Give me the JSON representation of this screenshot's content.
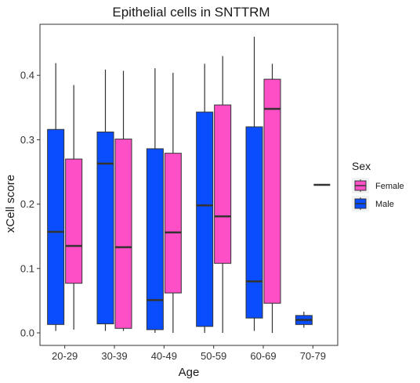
{
  "chart_data": {
    "type": "boxplot",
    "title": "Epithelial cells in SNTTRM",
    "xlabel": "Age",
    "ylabel": "xCell score",
    "categories": [
      "20-29",
      "30-39",
      "40-49",
      "50-59",
      "60-69",
      "70-79"
    ],
    "ylim": [
      -0.02,
      0.47
    ],
    "yticks": [
      "0.0",
      "0.1",
      "0.2",
      "0.3",
      "0.4"
    ],
    "legend": {
      "title": "Sex",
      "position": "right"
    },
    "grid": false,
    "series": [
      {
        "name": "Female",
        "color": "#FF4FC6",
        "boxes": [
          {
            "min": 0.005,
            "q1": 0.077,
            "median": 0.135,
            "q3": 0.27,
            "max": 0.385
          },
          {
            "min": 0.003,
            "q1": 0.007,
            "median": 0.133,
            "q3": 0.301,
            "max": 0.407
          },
          {
            "min": 0.0,
            "q1": 0.062,
            "median": 0.156,
            "q3": 0.279,
            "max": 0.404
          },
          {
            "min": 0.0,
            "q1": 0.108,
            "median": 0.181,
            "q3": 0.354,
            "max": 0.43
          },
          {
            "min": 0.0,
            "q1": 0.046,
            "median": 0.348,
            "q3": 0.394,
            "max": 0.418
          },
          {
            "min": 0.23,
            "q1": 0.23,
            "median": 0.23,
            "q3": 0.23,
            "max": 0.23
          }
        ]
      },
      {
        "name": "Male",
        "color": "#0A4DFF",
        "boxes": [
          {
            "min": 0.003,
            "q1": 0.013,
            "median": 0.157,
            "q3": 0.316,
            "max": 0.419
          },
          {
            "min": 0.003,
            "q1": 0.014,
            "median": 0.263,
            "q3": 0.312,
            "max": 0.409
          },
          {
            "min": 0.0,
            "q1": 0.005,
            "median": 0.051,
            "q3": 0.286,
            "max": 0.411
          },
          {
            "min": 0.0,
            "q1": 0.01,
            "median": 0.198,
            "q3": 0.343,
            "max": 0.418
          },
          {
            "min": 0.003,
            "q1": 0.023,
            "median": 0.08,
            "q3": 0.32,
            "max": 0.46
          },
          {
            "min": 0.008,
            "q1": 0.013,
            "median": 0.02,
            "q3": 0.027,
            "max": 0.033
          }
        ]
      }
    ]
  }
}
